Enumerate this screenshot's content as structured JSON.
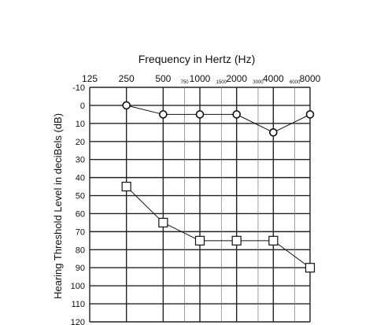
{
  "chart_data": {
    "type": "line",
    "title": "Frequency in Hertz (Hz)",
    "xlabel": "Frequency in Hertz (Hz)",
    "ylabel": "Hearing Threshold Level in deciBels (dB)",
    "x_scale": "log2",
    "xlim": [
      125,
      8000
    ],
    "ylim": [
      -10,
      120
    ],
    "y_inverted": true,
    "grid": true,
    "x_major_ticks": [
      {
        "value": 125,
        "label": "125"
      },
      {
        "value": 250,
        "label": "250"
      },
      {
        "value": 500,
        "label": "500"
      },
      {
        "value": 1000,
        "label": "1000"
      },
      {
        "value": 2000,
        "label": "2000"
      },
      {
        "value": 4000,
        "label": "4000"
      },
      {
        "value": 8000,
        "label": "8000"
      }
    ],
    "x_minor_ticks": [
      {
        "value": 750,
        "label": "750"
      },
      {
        "value": 1500,
        "label": "1500"
      },
      {
        "value": 3000,
        "label": "3000"
      },
      {
        "value": 6000,
        "label": "6000"
      }
    ],
    "y_ticks": [
      -10,
      0,
      10,
      20,
      30,
      40,
      50,
      60,
      70,
      80,
      90,
      100,
      110,
      120
    ],
    "series": [
      {
        "marker": "circle",
        "x": [
          250,
          500,
          1000,
          2000,
          4000,
          8000
        ],
        "y": [
          0,
          5,
          5,
          5,
          15,
          5
        ]
      },
      {
        "marker": "square",
        "x": [
          250,
          500,
          1000,
          2000,
          4000,
          8000
        ],
        "y": [
          45,
          65,
          75,
          75,
          75,
          90
        ]
      }
    ]
  }
}
